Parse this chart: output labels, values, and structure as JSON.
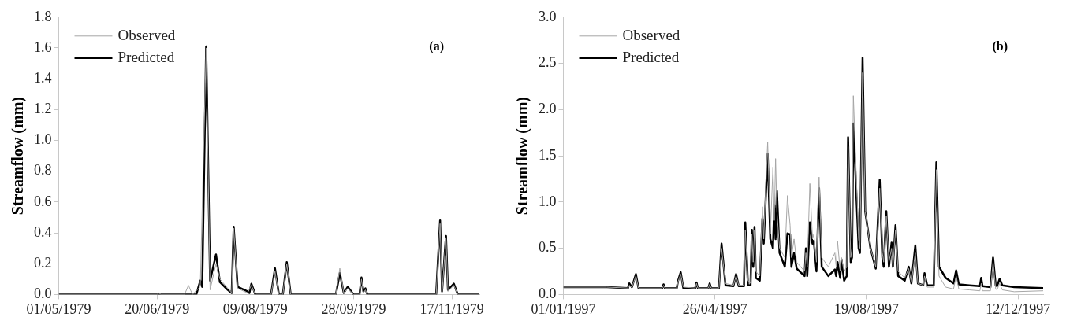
{
  "chart_data": [
    {
      "type": "line",
      "ylabel": "Streamflow (mm)",
      "annotations": [
        "(a)"
      ],
      "legend": "top left",
      "marker": "none",
      "xlim": [
        "1979-05-01",
        "1979-12-01"
      ],
      "xticks": [
        {
          "value": "1979-05-01",
          "label": "01/05/1979"
        },
        {
          "value": "1979-06-20",
          "label": "20/06/1979"
        },
        {
          "value": "1979-08-09",
          "label": "09/08/1979"
        },
        {
          "value": "1979-09-28",
          "label": "28/09/1979"
        },
        {
          "value": "1979-11-17",
          "label": "17/11/1979"
        }
      ],
      "ylim": [
        0,
        1.8
      ],
      "yticks": [
        {
          "value": 0,
          "label": "0.0"
        },
        0.2,
        0.4,
        0.6,
        0.8,
        {
          "value": 1,
          "label": "1.0"
        },
        1.2,
        1.4,
        1.6,
        1.8
      ],
      "series": [
        {
          "name": "Observed",
          "color": "#a6a6a6",
          "x": [
            "1979-05-01",
            "1979-06-20",
            "1979-06-21",
            "1979-06-22",
            "1979-07-04",
            "1979-07-06",
            "1979-07-08",
            "1979-07-12",
            "1979-07-15",
            "1979-07-17",
            "1979-07-20",
            "1979-07-22",
            "1979-07-26",
            "1979-07-28",
            "1979-07-29",
            "1979-07-31",
            "1979-08-05",
            "1979-08-07",
            "1979-08-09",
            "1979-08-17",
            "1979-08-19",
            "1979-08-21",
            "1979-08-23",
            "1979-08-25",
            "1979-08-27",
            "1979-09-19",
            "1979-09-21",
            "1979-09-23",
            "1979-09-25",
            "1979-09-28",
            "1979-10-01",
            "1979-10-02",
            "1979-10-03",
            "1979-10-04",
            "1979-10-05",
            "1979-11-09",
            "1979-11-11",
            "1979-11-12",
            "1979-11-14",
            "1979-11-15",
            "1979-11-18",
            "1979-11-20",
            "1979-12-01"
          ],
          "values": [
            0,
            0,
            0.01,
            0,
            0,
            0.06,
            0,
            0.05,
            1.6,
            0.03,
            0.2,
            0.1,
            0.04,
            0.01,
            0.43,
            0.04,
            0.01,
            0.06,
            0,
            0,
            0.15,
            0,
            0,
            0.2,
            0,
            0,
            0.17,
            0.01,
            0.04,
            0,
            0,
            0.1,
            0.01,
            0.03,
            0,
            0,
            0.46,
            0.01,
            0.37,
            0.02,
            0.06,
            0,
            0
          ]
        },
        {
          "name": "Predicted",
          "color": "#000000",
          "x": [
            "1979-05-01",
            "1979-07-10",
            "1979-07-12",
            "1979-07-13",
            "1979-07-15",
            "1979-07-17",
            "1979-07-20",
            "1979-07-22",
            "1979-07-26",
            "1979-07-28",
            "1979-07-29",
            "1979-07-31",
            "1979-08-05",
            "1979-08-06",
            "1979-08-07",
            "1979-08-09",
            "1979-08-17",
            "1979-08-19",
            "1979-08-21",
            "1979-08-23",
            "1979-08-25",
            "1979-08-27",
            "1979-09-19",
            "1979-09-21",
            "1979-09-23",
            "1979-09-25",
            "1979-09-28",
            "1979-10-01",
            "1979-10-02",
            "1979-10-03",
            "1979-10-04",
            "1979-10-05",
            "1979-11-09",
            "1979-11-11",
            "1979-11-12",
            "1979-11-14",
            "1979-11-15",
            "1979-11-18",
            "1979-11-20",
            "1979-12-01"
          ],
          "values": [
            0,
            0,
            0.09,
            0.05,
            1.61,
            0.09,
            0.26,
            0.08,
            0.03,
            0.01,
            0.44,
            0.05,
            0.02,
            0.01,
            0.07,
            0,
            0,
            0.17,
            0,
            0,
            0.21,
            0,
            0,
            0.14,
            0.01,
            0.05,
            0,
            0,
            0.11,
            0.02,
            0.04,
            0,
            0,
            0.48,
            0.02,
            0.38,
            0.03,
            0.07,
            0,
            0
          ]
        }
      ]
    },
    {
      "type": "line",
      "ylabel": "Streamflow (mm)",
      "annotations": [
        "(b)"
      ],
      "legend": "top left",
      "marker": "none",
      "xlim": [
        "1997-01-01",
        "1997-12-31"
      ],
      "xticks": [
        {
          "value": "1997-01-01",
          "label": "01/01/1997"
        },
        {
          "value": "1997-04-26",
          "label": "26/04/1997"
        },
        {
          "value": "1997-08-19",
          "label": "19/08/1997"
        },
        {
          "value": "1997-12-12",
          "label": "12/12/1997"
        }
      ],
      "ylim": [
        0,
        3
      ],
      "yticks": [
        {
          "value": 0,
          "label": "0.0"
        },
        0.5,
        {
          "value": 1,
          "label": "1.0"
        },
        1.5,
        {
          "value": 2,
          "label": "2.0"
        },
        2.5,
        {
          "value": 3,
          "label": "3.0"
        }
      ],
      "series": [
        {
          "name": "Observed",
          "color": "#a6a6a6",
          "x": [
            "1997-01-01",
            "1997-02-03",
            "1997-02-19",
            "1997-02-20",
            "1997-02-22",
            "1997-02-25",
            "1997-02-27",
            "1997-03-17",
            "1997-03-18",
            "1997-03-19",
            "1997-03-28",
            "1997-03-29",
            "1997-03-31",
            "1997-04-02",
            "1997-04-11",
            "1997-04-12",
            "1997-04-13",
            "1997-04-21",
            "1997-04-22",
            "1997-04-23",
            "1997-04-29",
            "1997-05-01",
            "1997-05-04",
            "1997-05-10",
            "1997-05-12",
            "1997-05-14",
            "1997-05-18",
            "1997-05-19",
            "1997-05-21",
            "1997-05-23",
            "1997-05-24",
            "1997-05-25",
            "1997-05-26",
            "1997-05-27",
            "1997-05-30",
            "1997-06-01",
            "1997-06-02",
            "1997-06-05",
            "1997-06-07",
            "1997-06-09",
            "1997-06-10",
            "1997-06-11",
            "1997-06-12",
            "1997-06-14",
            "1997-06-18",
            "1997-06-20",
            "1997-06-22",
            "1997-06-23",
            "1997-06-25",
            "1997-06-27",
            "1997-07-03",
            "1997-07-04",
            "1997-07-05",
            "1997-07-07",
            "1997-07-09",
            "1997-07-10",
            "1997-07-12",
            "1997-07-14",
            "1997-07-16",
            "1997-07-21",
            "1997-07-26",
            "1997-07-27",
            "1997-07-28",
            "1997-07-30",
            "1997-07-31",
            "1997-08-02",
            "1997-08-04",
            "1997-08-05",
            "1997-08-07",
            "1997-08-08",
            "1997-08-09",
            "1997-08-13",
            "1997-08-14",
            "1997-08-16",
            "1997-08-18",
            "1997-08-22",
            "1997-08-26",
            "1997-08-29",
            "1997-08-31",
            "1997-09-01",
            "1997-09-03",
            "1997-09-05",
            "1997-09-07",
            "1997-09-08",
            "1997-09-10",
            "1997-09-12",
            "1997-09-17",
            "1997-09-20",
            "1997-09-22",
            "1997-09-25",
            "1997-09-27",
            "1997-10-01",
            "1997-10-02",
            "1997-10-04",
            "1997-10-09",
            "1997-10-11",
            "1997-10-13",
            "1997-10-18",
            "1997-10-24",
            "1997-10-26",
            "1997-10-28",
            "1997-11-05",
            "1997-11-13",
            "1997-11-14",
            "1997-11-15",
            "1997-11-21",
            "1997-11-23",
            "1997-11-25",
            "1997-11-26",
            "1997-11-28",
            "1997-11-30",
            "1997-12-09",
            "1997-12-31"
          ],
          "values": [
            0.08,
            0.08,
            0.07,
            0.1,
            0.08,
            0.2,
            0.07,
            0.07,
            0.1,
            0.07,
            0.07,
            0.14,
            0.22,
            0.08,
            0.07,
            0.12,
            0.07,
            0.07,
            0.11,
            0.07,
            0.07,
            0.5,
            0.12,
            0.1,
            0.2,
            0.1,
            0.1,
            0.7,
            0.15,
            0.12,
            0.65,
            0.35,
            0.7,
            0.25,
            0.2,
            0.95,
            0.6,
            1.65,
            0.65,
            1.38,
            0.8,
            1.47,
            0.9,
            0.5,
            0.4,
            1.07,
            0.75,
            0.4,
            0.6,
            0.35,
            0.25,
            0.45,
            0.3,
            1.2,
            0.6,
            0.65,
            0.35,
            1.27,
            0.4,
            0.3,
            0.45,
            0.3,
            0.58,
            0.25,
            0.4,
            0.25,
            0.3,
            1.6,
            0.4,
            0.5,
            2.15,
            0.6,
            0.5,
            2.4,
            0.9,
            0.5,
            0.3,
            1.15,
            0.45,
            0.35,
            0.85,
            0.35,
            0.5,
            0.3,
            0.7,
            0.25,
            0.18,
            0.28,
            0.13,
            0.45,
            0.12,
            0.1,
            0.2,
            0.08,
            0.08,
            1.35,
            0.2,
            0.08,
            0.06,
            0.2,
            0.06,
            0.05,
            0.04,
            0.12,
            0.04,
            0.04,
            0.35,
            0.06,
            0.05,
            0.12,
            0.05,
            0.03,
            0.04
          ]
        },
        {
          "name": "Predicted",
          "color": "#000000",
          "x": [
            "1997-01-01",
            "1997-02-03",
            "1997-02-19",
            "1997-02-20",
            "1997-02-22",
            "1997-02-25",
            "1997-02-27",
            "1997-03-17",
            "1997-03-18",
            "1997-03-19",
            "1997-03-28",
            "1997-03-29",
            "1997-03-31",
            "1997-04-02",
            "1997-04-11",
            "1997-04-12",
            "1997-04-13",
            "1997-04-21",
            "1997-04-22",
            "1997-04-23",
            "1997-04-29",
            "1997-05-01",
            "1997-05-04",
            "1997-05-10",
            "1997-05-12",
            "1997-05-14",
            "1997-05-18",
            "1997-05-19",
            "1997-05-21",
            "1997-05-23",
            "1997-05-24",
            "1997-05-25",
            "1997-05-26",
            "1997-05-27",
            "1997-05-30",
            "1997-06-01",
            "1997-06-02",
            "1997-06-05",
            "1997-06-07",
            "1997-06-09",
            "1997-06-10",
            "1997-06-11",
            "1997-06-12",
            "1997-06-14",
            "1997-06-18",
            "1997-06-20",
            "1997-06-22",
            "1997-06-23",
            "1997-06-25",
            "1997-06-27",
            "1997-07-03",
            "1997-07-04",
            "1997-07-05",
            "1997-07-07",
            "1997-07-09",
            "1997-07-10",
            "1997-07-12",
            "1997-07-14",
            "1997-07-16",
            "1997-07-21",
            "1997-07-26",
            "1997-07-27",
            "1997-07-28",
            "1997-07-30",
            "1997-07-31",
            "1997-08-02",
            "1997-08-04",
            "1997-08-05",
            "1997-08-07",
            "1997-08-08",
            "1997-08-09",
            "1997-08-13",
            "1997-08-14",
            "1997-08-16",
            "1997-08-18",
            "1997-08-22",
            "1997-08-26",
            "1997-08-29",
            "1997-08-31",
            "1997-09-01",
            "1997-09-03",
            "1997-09-05",
            "1997-09-07",
            "1997-09-08",
            "1997-09-10",
            "1997-09-12",
            "1997-09-17",
            "1997-09-20",
            "1997-09-22",
            "1997-09-25",
            "1997-09-27",
            "1997-10-01",
            "1997-10-02",
            "1997-10-04",
            "1997-10-09",
            "1997-10-11",
            "1997-10-13",
            "1997-10-18",
            "1997-10-24",
            "1997-10-26",
            "1997-10-28",
            "1997-11-05",
            "1997-11-13",
            "1997-11-14",
            "1997-11-15",
            "1997-11-21",
            "1997-11-23",
            "1997-11-25",
            "1997-11-26",
            "1997-11-28",
            "1997-11-30",
            "1997-12-09",
            "1997-12-31"
          ],
          "values": [
            0.08,
            0.08,
            0.07,
            0.12,
            0.08,
            0.22,
            0.07,
            0.07,
            0.11,
            0.07,
            0.07,
            0.15,
            0.24,
            0.07,
            0.07,
            0.13,
            0.07,
            0.07,
            0.12,
            0.07,
            0.07,
            0.55,
            0.1,
            0.09,
            0.22,
            0.09,
            0.09,
            0.78,
            0.1,
            0.1,
            0.7,
            0.3,
            0.73,
            0.18,
            0.15,
            0.82,
            0.55,
            1.52,
            0.6,
            0.5,
            0.97,
            0.6,
            1.12,
            0.45,
            0.3,
            0.66,
            0.65,
            0.3,
            0.45,
            0.28,
            0.2,
            0.5,
            0.2,
            0.78,
            0.55,
            0.58,
            0.25,
            1.15,
            0.3,
            0.2,
            0.27,
            0.2,
            0.35,
            0.18,
            0.38,
            0.15,
            0.2,
            1.7,
            0.35,
            0.4,
            1.85,
            0.5,
            0.45,
            2.56,
            0.9,
            0.5,
            0.28,
            1.24,
            0.4,
            0.3,
            0.9,
            0.3,
            0.56,
            0.3,
            0.75,
            0.2,
            0.15,
            0.3,
            0.12,
            0.53,
            0.12,
            0.1,
            0.23,
            0.1,
            0.1,
            1.43,
            0.3,
            0.18,
            0.12,
            0.26,
            0.11,
            0.1,
            0.09,
            0.18,
            0.09,
            0.08,
            0.4,
            0.1,
            0.09,
            0.17,
            0.1,
            0.08,
            0.07
          ]
        }
      ]
    }
  ]
}
